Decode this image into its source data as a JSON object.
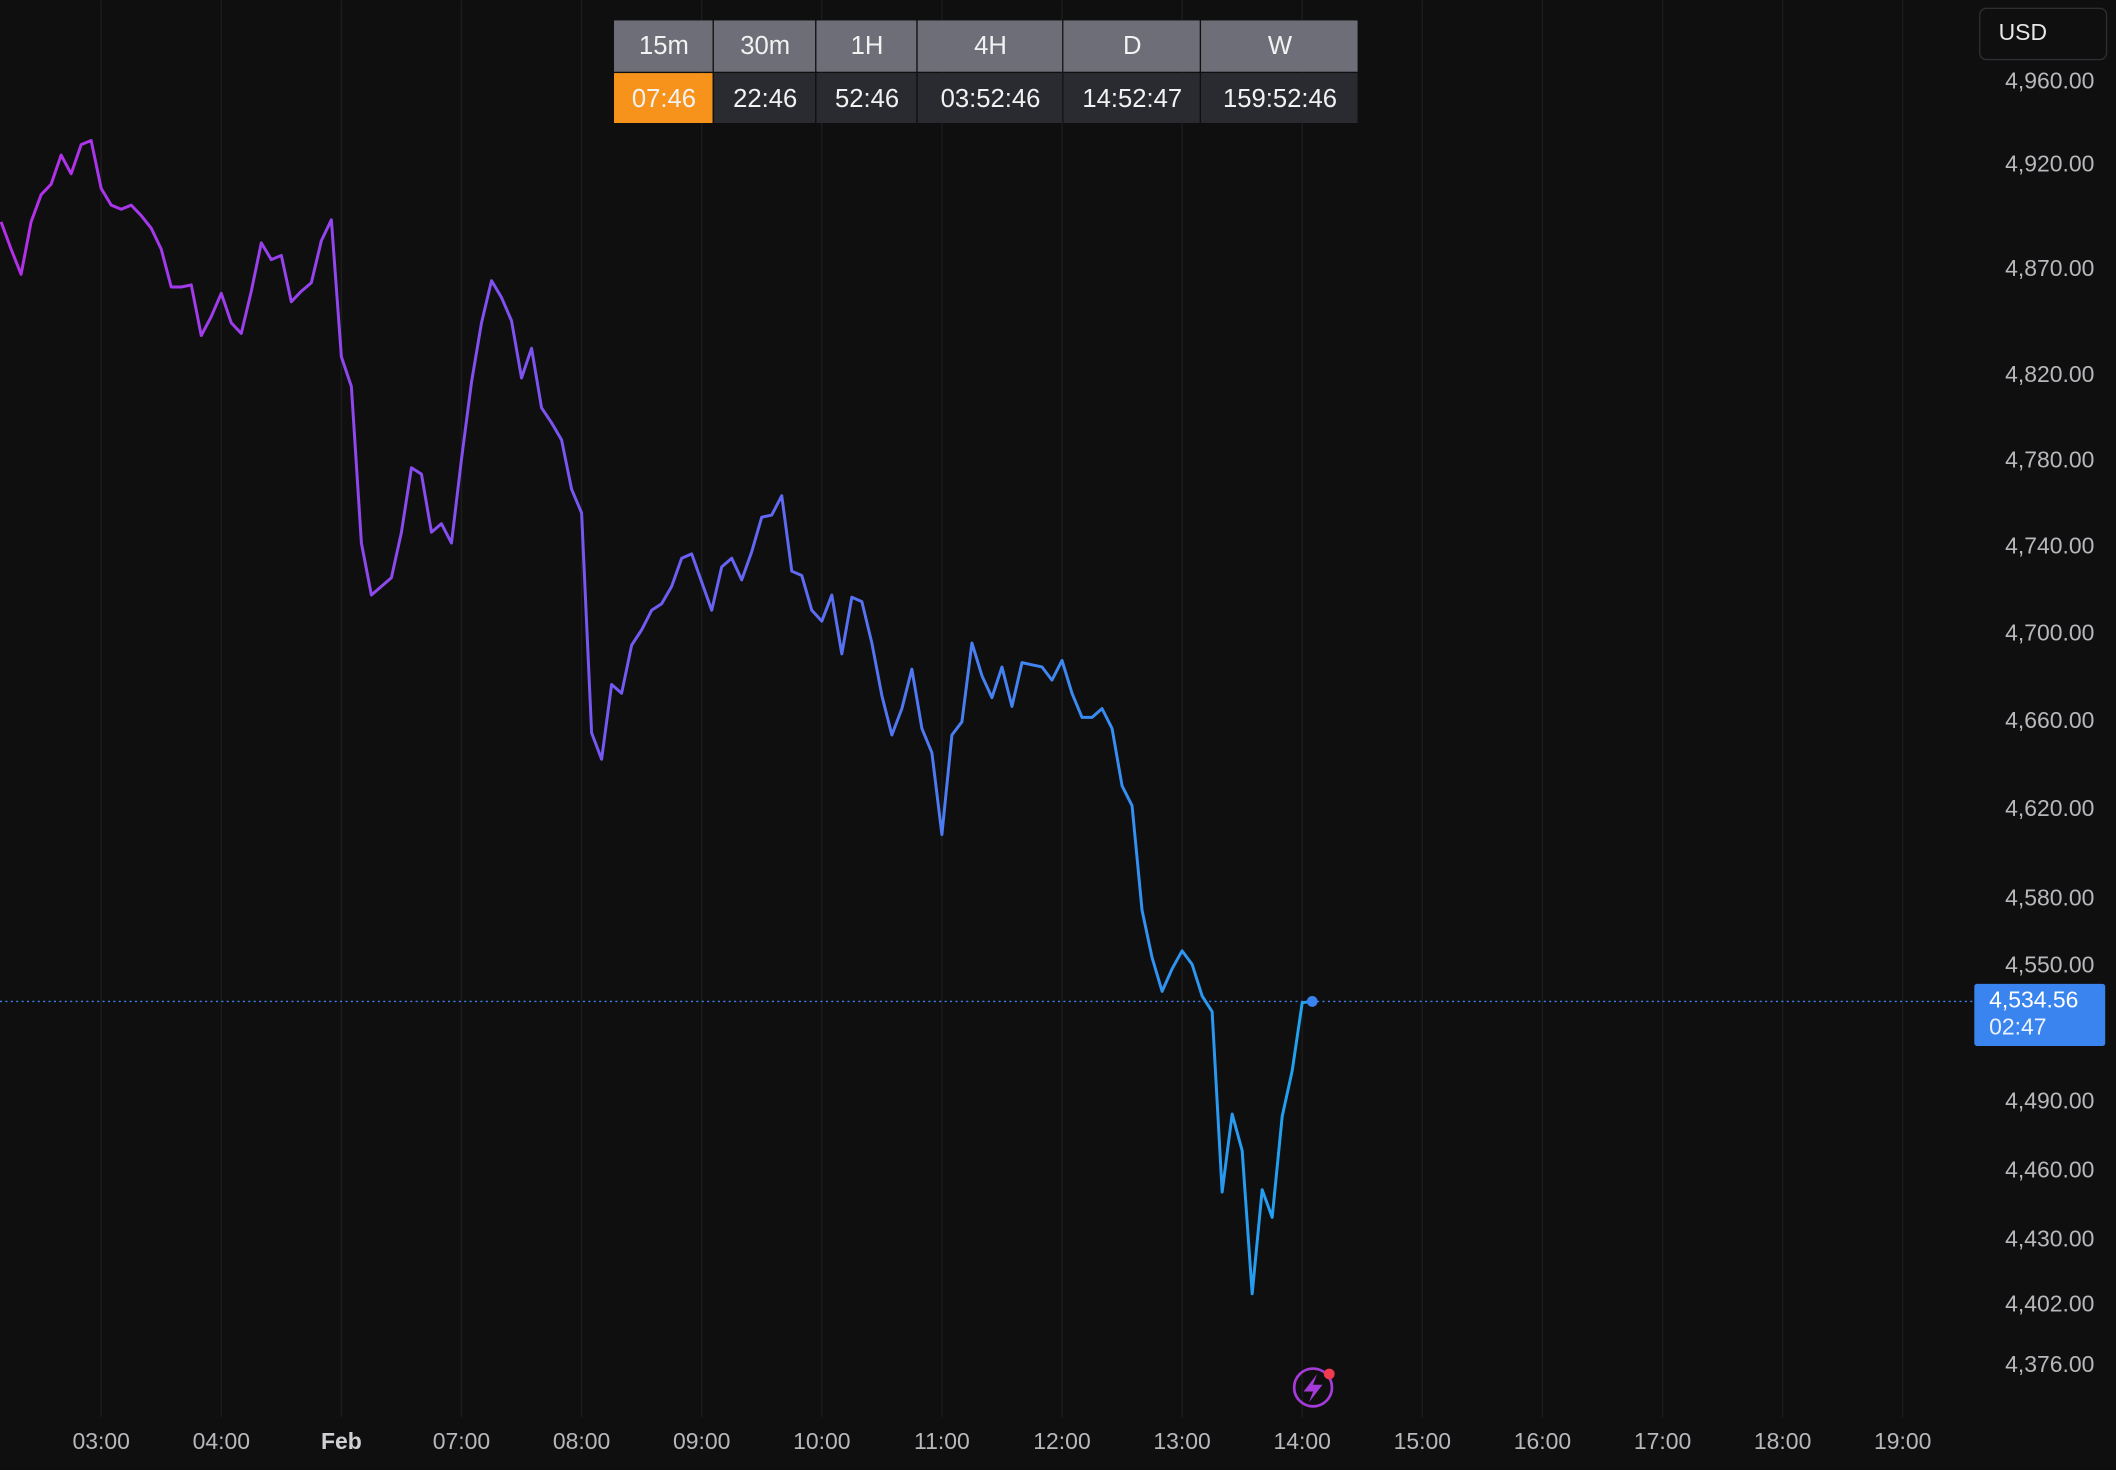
{
  "currency": "USD",
  "timeframes": [
    {
      "label": "15m",
      "countdown": "07:46"
    },
    {
      "label": "30m",
      "countdown": "22:46"
    },
    {
      "label": "1H",
      "countdown": "52:46"
    },
    {
      "label": "4H",
      "countdown": "03:52:46"
    },
    {
      "label": "D",
      "countdown": "14:52:47"
    },
    {
      "label": "W",
      "countdown": "159:52:46"
    }
  ],
  "chart_data": {
    "type": "line",
    "log_scale": true,
    "grid": "x",
    "line_gradient": [
      "#b52ee8",
      "#6f5cf3",
      "#1ea3f0"
    ],
    "ylim": [
      4360,
      5000
    ],
    "yticks": [
      {
        "value": 4960,
        "label": "4,960.00"
      },
      {
        "value": 4920,
        "label": "4,920.00"
      },
      {
        "value": 4870,
        "label": "4,870.00"
      },
      {
        "value": 4820,
        "label": "4,820.00"
      },
      {
        "value": 4780,
        "label": "4,780.00"
      },
      {
        "value": 4740,
        "label": "4,740.00"
      },
      {
        "value": 4700,
        "label": "4,700.00"
      },
      {
        "value": 4660,
        "label": "4,660.00"
      },
      {
        "value": 4620,
        "label": "4,620.00"
      },
      {
        "value": 4580,
        "label": "4,580.00"
      },
      {
        "value": 4550,
        "label": "4,550.00"
      },
      {
        "value": 4490,
        "label": "4,490.00"
      },
      {
        "value": 4460,
        "label": "4,460.00"
      },
      {
        "value": 4430,
        "label": "4,430.00"
      },
      {
        "value": 4402,
        "label": "4,402.00"
      },
      {
        "value": 4376,
        "label": "4,376.00"
      }
    ],
    "price_line": {
      "value": 4534.56,
      "label": "4,534.56",
      "color": "#3a84f0"
    },
    "countdown": "02:47",
    "categories": [
      null,
      null,
      null,
      null,
      null,
      null,
      null,
      null,
      null,
      null,
      "03:00",
      null,
      null,
      null,
      null,
      null,
      null,
      null,
      null,
      null,
      null,
      null,
      "04:00",
      null,
      null,
      null,
      null,
      null,
      null,
      null,
      null,
      null,
      null,
      null,
      "Feb",
      null,
      null,
      null,
      null,
      null,
      null,
      null,
      null,
      null,
      null,
      null,
      "07:00",
      null,
      null,
      null,
      null,
      null,
      null,
      null,
      null,
      null,
      null,
      null,
      "08:00",
      null,
      null,
      null,
      null,
      null,
      null,
      null,
      null,
      null,
      null,
      null,
      "09:00",
      null,
      null,
      null,
      null,
      null,
      null,
      null,
      null,
      null,
      null,
      null,
      "10:00",
      null,
      null,
      null,
      null,
      null,
      null,
      null,
      null,
      null,
      null,
      null,
      "11:00",
      null,
      null,
      null,
      null,
      null,
      null,
      null,
      null,
      null,
      null,
      null,
      "12:00",
      null,
      null,
      null,
      null,
      null,
      null,
      null,
      null,
      null,
      null,
      null,
      "13:00",
      null,
      null,
      null,
      null,
      null,
      null,
      null,
      null,
      null,
      null,
      null,
      "14:00",
      null,
      null,
      null,
      null,
      null,
      null,
      null,
      null,
      null,
      null,
      null,
      "15:00",
      null,
      null,
      null,
      null,
      null,
      null,
      null,
      null,
      null,
      null,
      null,
      "16:00",
      null,
      null,
      null,
      null,
      null,
      null,
      null,
      null,
      null,
      null,
      null,
      "17:00",
      null,
      null,
      null,
      null,
      null,
      null,
      null,
      null,
      null,
      null,
      null,
      "18:00",
      null,
      null,
      null,
      null,
      null,
      null,
      null,
      null,
      null,
      null,
      null,
      "19:00"
    ],
    "values": [
      4893,
      4880,
      4868,
      4893,
      4906,
      4911,
      4925,
      4916,
      4930,
      4932,
      4909,
      4901,
      4899,
      4901,
      4896,
      4890,
      4880,
      4862,
      4862,
      4863,
      4839,
      4848,
      4859,
      4845,
      4840,
      4860,
      4883,
      4875,
      4877,
      4855,
      4860,
      4864,
      4884,
      4894,
      4829,
      4815,
      4742,
      4718,
      4722,
      4726,
      4747,
      4777,
      4774,
      4747,
      4751,
      4742,
      4781,
      4817,
      4845,
      4865,
      4857,
      4846,
      4819,
      4833,
      4805,
      4798,
      4790,
      4767,
      4756,
      4655,
      4643,
      4677,
      4673,
      4695,
      4702,
      4711,
      4714,
      4722,
      4735,
      4737,
      4724,
      4711,
      4731,
      4735,
      4725,
      4738,
      4754,
      4755,
      4764,
      4729,
      4727,
      4711,
      4706,
      4718,
      4691,
      4717,
      4715,
      4696,
      4672,
      4654,
      4666,
      4684,
      4657,
      4646,
      4609,
      4654,
      4660,
      4696,
      4681,
      4671,
      4685,
      4667,
      4687,
      4686,
      4685,
      4679,
      4688,
      4673,
      4662,
      4662,
      4666,
      4657,
      4631,
      4622,
      4575,
      4554,
      4539,
      4549,
      4557,
      4551,
      4537,
      4530,
      4451,
      4485,
      4469,
      4407,
      4452,
      4440,
      4484,
      4504,
      4534,
      4534.56,
      null,
      null,
      null,
      null,
      null,
      null,
      null,
      null,
      null,
      null,
      null,
      null,
      null,
      null,
      null,
      null,
      null,
      null,
      null,
      null,
      null,
      null,
      null,
      null,
      null,
      null,
      null,
      null,
      null,
      null,
      null,
      null,
      null,
      null,
      null,
      null,
      null,
      null,
      null,
      null,
      null,
      null,
      null,
      null,
      null,
      null,
      null,
      null,
      null,
      null,
      null,
      null,
      null,
      null,
      null,
      null,
      null,
      null,
      null
    ]
  }
}
